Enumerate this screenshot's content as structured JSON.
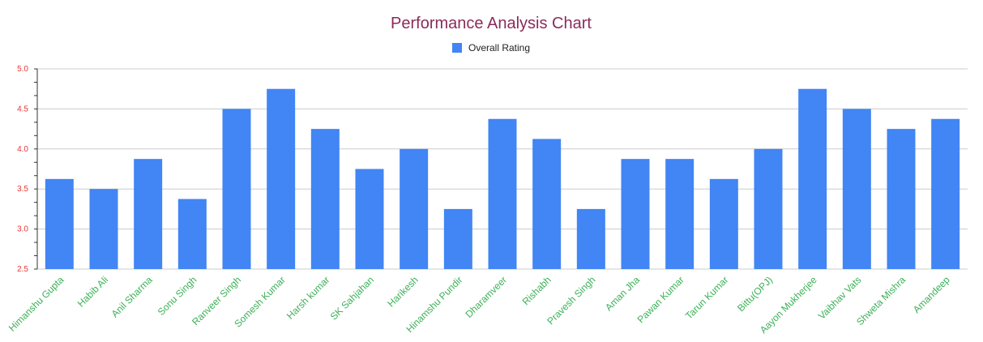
{
  "chart_data": {
    "type": "bar",
    "title": "Performance Analysis Chart",
    "categories": [
      "Himanshu Gupta",
      "Habib Ali",
      "Anil Sharma",
      "Sonu Singh",
      "Ranveer Singh",
      "Somesh Kumar",
      "Harsh kumar",
      "SK Sahjahan",
      "Harikesh",
      "Hinamshu Pundir",
      "Dharamveer",
      "Rishabh",
      "Pravesh Singh",
      "Aman Jha",
      "Pawan Kumar",
      "Tarun Kumar",
      "Bittu(OPJ)",
      "Aayon Mukherjee",
      "Vaibhav Vats",
      "Shweta Mishra",
      "Amandeep"
    ],
    "series": [
      {
        "name": "Overall Rating",
        "values": [
          3.625,
          3.5,
          3.875,
          3.375,
          4.5,
          4.75,
          4.25,
          3.75,
          4.0,
          3.25,
          4.375,
          4.125,
          3.25,
          3.875,
          3.875,
          3.625,
          4.0,
          4.75,
          4.5,
          4.25,
          4.375
        ]
      }
    ],
    "ylim": [
      2.5,
      5.0
    ],
    "yticks": [
      "2.5",
      "3.0",
      "3.5",
      "4.0",
      "4.5",
      "5.0"
    ],
    "grid": true,
    "legend_position": "top-center",
    "colors": {
      "bar": "#4285f4",
      "title": "#8b2a5c",
      "y_tick_label": "#e53935",
      "x_tick_label": "#3cb058",
      "grid": "#cccccc",
      "axis": "#333333"
    }
  }
}
